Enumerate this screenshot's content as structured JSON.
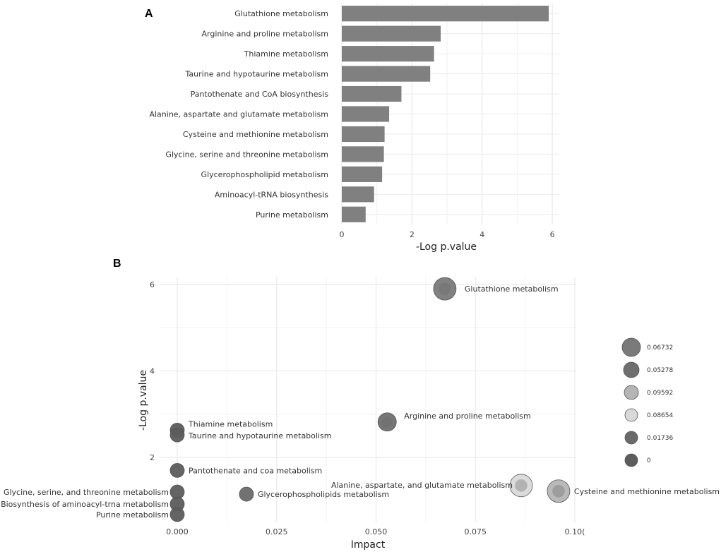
{
  "chart_data": [
    {
      "panel": "A",
      "type": "bar",
      "orientation": "horizontal",
      "categories": [
        "Glutathione metabolism",
        "Arginine and proline metabolism",
        "Thiamine metabolism",
        "Taurine and hypotaurine metabolism",
        "Pantothenate and CoA biosynthesis",
        "Alanine, aspartate and glutamate metabolism",
        "Cysteine and methionine metabolism",
        "Glycine, serine and threonine metabolism",
        "Glycerophospholipid metabolism",
        "Aminoacyl-tRNA biosynthesis",
        "Purine metabolism"
      ],
      "values": [
        5.9,
        2.82,
        2.63,
        2.52,
        1.7,
        1.35,
        1.22,
        1.2,
        1.15,
        0.92,
        0.68
      ],
      "xlabel": "-Log p.value",
      "xlim": [
        0,
        6.2
      ],
      "xticks": [
        0,
        2,
        4,
        6
      ],
      "bar_color": "#808080"
    },
    {
      "panel": "B",
      "type": "scatter",
      "xlabel": "Impact",
      "ylabel": "-Log p.value",
      "xlim": [
        0,
        0.1
      ],
      "ylim": [
        0.6,
        6.3
      ],
      "xticks": [
        0.0,
        0.025,
        0.05,
        0.075,
        0.1
      ],
      "xtick_labels": [
        "0.000",
        "0.025",
        "0.050",
        "0.075",
        "0.10("
      ],
      "yticks": [
        2,
        4,
        6
      ],
      "points": [
        {
          "label": "Glutathione metabolism",
          "x": 0.0673,
          "y": 5.9,
          "size": 0.06732,
          "color": "#7a7a7a"
        },
        {
          "label": "Arginine and proline metabolism",
          "x": 0.0528,
          "y": 2.82,
          "size": 0.05278,
          "color": "#6f6f6f"
        },
        {
          "label": "Thiamine metabolism",
          "x": 0.0,
          "y": 2.63,
          "size": 0.0,
          "color": "#5c5c5c"
        },
        {
          "label": "Taurine and hypotaurine metabolism",
          "x": 0.0,
          "y": 2.52,
          "size": 0.0,
          "color": "#5c5c5c"
        },
        {
          "label": "Pantothenate and coa metabolism",
          "x": 0.0,
          "y": 1.7,
          "size": 0.0,
          "color": "#5c5c5c"
        },
        {
          "label": "Alanine, aspartate, and glutamate metabolism",
          "x": 0.0865,
          "y": 1.35,
          "size": 0.08654,
          "color": "#d9d9d9"
        },
        {
          "label": "Cysteine and methionine metabolism",
          "x": 0.0959,
          "y": 1.22,
          "size": 0.09592,
          "color": "#b5b5b5"
        },
        {
          "label": "Glycine, serine, and threonine metabolism",
          "x": 0.0,
          "y": 1.2,
          "size": 0.0,
          "color": "#5c5c5c"
        },
        {
          "label": "Glycerophospholipids metabolism",
          "x": 0.0174,
          "y": 1.15,
          "size": 0.01736,
          "color": "#6a6a6a"
        },
        {
          "label": "Biosynthesis of aminoacyl-trna metabolism",
          "x": 0.0,
          "y": 0.92,
          "size": 0.0,
          "color": "#5c5c5c"
        },
        {
          "label": "Purine metabolism",
          "x": 0.0,
          "y": 0.68,
          "size": 0.0,
          "color": "#5c5c5c"
        }
      ],
      "legend": {
        "placement": "right",
        "entries": [
          {
            "label": "0.06732",
            "color": "#7a7a7a",
            "rank": 6
          },
          {
            "label": "0.05278",
            "color": "#6f6f6f",
            "rank": 5
          },
          {
            "label": "0.09592",
            "color": "#b5b5b5",
            "rank": 4
          },
          {
            "label": "0.08654",
            "color": "#d9d9d9",
            "rank": 3
          },
          {
            "label": "0.01736",
            "color": "#6a6a6a",
            "rank": 2
          },
          {
            "label": "0",
            "color": "#5c5c5c",
            "rank": 1
          }
        ]
      }
    }
  ],
  "panel_labels": {
    "a": "A",
    "b": "B"
  }
}
